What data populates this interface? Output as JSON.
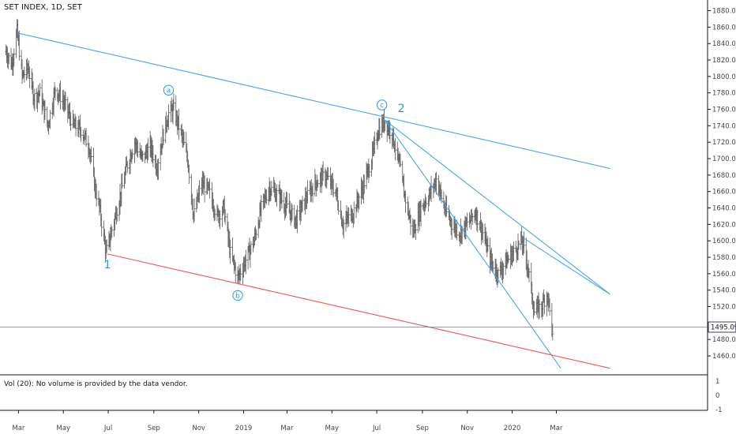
{
  "header": {
    "title": "SET INDEX, 1D, SET"
  },
  "volume_pane": {
    "text": "Vol (20): No volume is provided by the data vendor.",
    "ticks": [
      "1",
      "0",
      "-1"
    ]
  },
  "last_price": "1495.09",
  "colors": {
    "bars": "#555555",
    "trendline_blue": "#42a5f5",
    "trendline_red": "#ef5350",
    "wave_label": "#2196f3"
  },
  "chart_data": {
    "type": "ohlc",
    "title": "SET INDEX, 1D, SET",
    "x_ticks": [
      "Mar",
      "May",
      "Jul",
      "Sep",
      "Nov",
      "2019",
      "Mar",
      "May",
      "Jul",
      "Sep",
      "Nov",
      "2020",
      "Mar"
    ],
    "y_ticks": [
      "1880.00",
      "1860.00",
      "1840.00",
      "1820.00",
      "1800.00",
      "1780.00",
      "1760.00",
      "1740.00",
      "1720.00",
      "1700.00",
      "1680.00",
      "1660.00",
      "1640.00",
      "1620.00",
      "1600.00",
      "1580.00",
      "1560.00",
      "1540.00",
      "1520.00",
      "1480.00",
      "1460.00"
    ],
    "ylim": [
      1437,
      1893
    ],
    "series": [
      {
        "name": "",
        "points": [
          [
            "2018-02-12",
            1830
          ],
          [
            "2018-02-20",
            1815
          ],
          [
            "2018-02-27",
            1855
          ],
          [
            "2018-03-06",
            1800
          ],
          [
            "2018-03-14",
            1810
          ],
          [
            "2018-03-22",
            1775
          ],
          [
            "2018-03-30",
            1780
          ],
          [
            "2018-04-10",
            1740
          ],
          [
            "2018-04-20",
            1785
          ],
          [
            "2018-05-01",
            1770
          ],
          [
            "2018-05-15",
            1740
          ],
          [
            "2018-05-25",
            1735
          ],
          [
            "2018-06-05",
            1715
          ],
          [
            "2018-06-13",
            1665
          ],
          [
            "2018-06-20",
            1635
          ],
          [
            "2018-06-28",
            1585
          ],
          [
            "2018-07-05",
            1610
          ],
          [
            "2018-07-16",
            1650
          ],
          [
            "2018-07-26",
            1690
          ],
          [
            "2018-08-06",
            1720
          ],
          [
            "2018-08-16",
            1700
          ],
          [
            "2018-08-27",
            1715
          ],
          [
            "2018-09-05",
            1690
          ],
          [
            "2018-09-14",
            1730
          ],
          [
            "2018-09-21",
            1755
          ],
          [
            "2018-09-28",
            1760
          ],
          [
            "2018-10-08",
            1730
          ],
          [
            "2018-10-17",
            1700
          ],
          [
            "2018-10-25",
            1630
          ],
          [
            "2018-11-05",
            1670
          ],
          [
            "2018-11-15",
            1660
          ],
          [
            "2018-11-26",
            1630
          ],
          [
            "2018-12-05",
            1640
          ],
          [
            "2018-12-14",
            1585
          ],
          [
            "2018-12-24",
            1555
          ],
          [
            "2019-01-03",
            1575
          ],
          [
            "2019-01-15",
            1600
          ],
          [
            "2019-01-25",
            1640
          ],
          [
            "2019-02-05",
            1665
          ],
          [
            "2019-02-18",
            1655
          ],
          [
            "2019-03-01",
            1640
          ],
          [
            "2019-03-13",
            1625
          ],
          [
            "2019-03-26",
            1650
          ],
          [
            "2019-04-08",
            1670
          ],
          [
            "2019-04-22",
            1680
          ],
          [
            "2019-05-06",
            1660
          ],
          [
            "2019-05-16",
            1620
          ],
          [
            "2019-05-30",
            1635
          ],
          [
            "2019-06-12",
            1665
          ],
          [
            "2019-06-24",
            1700
          ],
          [
            "2019-07-03",
            1735
          ],
          [
            "2019-07-12",
            1745
          ],
          [
            "2019-07-22",
            1730
          ],
          [
            "2019-08-01",
            1690
          ],
          [
            "2019-08-09",
            1650
          ],
          [
            "2019-08-19",
            1610
          ],
          [
            "2019-08-30",
            1640
          ],
          [
            "2019-09-10",
            1655
          ],
          [
            "2019-09-20",
            1675
          ],
          [
            "2019-10-01",
            1640
          ],
          [
            "2019-10-11",
            1620
          ],
          [
            "2019-10-22",
            1610
          ],
          [
            "2019-11-01",
            1620
          ],
          [
            "2019-11-12",
            1635
          ],
          [
            "2019-11-22",
            1610
          ],
          [
            "2019-12-03",
            1575
          ],
          [
            "2019-12-13",
            1560
          ],
          [
            "2019-12-24",
            1575
          ],
          [
            "2020-01-06",
            1590
          ],
          [
            "2020-01-14",
            1600
          ],
          [
            "2020-01-22",
            1570
          ],
          [
            "2020-01-31",
            1515
          ],
          [
            "2020-02-10",
            1520
          ],
          [
            "2020-02-17",
            1535
          ],
          [
            "2020-02-21",
            1520
          ],
          [
            "2020-02-25",
            1480
          ]
        ]
      }
    ],
    "trendlines": [
      {
        "name": "",
        "color": "blue",
        "from": [
          "2018-02-27",
          1853
        ],
        "to": [
          "2020-05-13",
          1688
        ]
      },
      {
        "name": "",
        "color": "blue",
        "from": [
          "2019-07-12",
          1747
        ],
        "to": [
          "2020-05-13",
          1535
        ]
      },
      {
        "name": "",
        "color": "blue",
        "from": [
          "2019-07-12",
          1747
        ],
        "to": [
          "2020-03-07",
          1445
        ]
      },
      {
        "name": "",
        "color": "blue",
        "from": [
          "2020-01-17",
          1603
        ],
        "to": [
          "2020-05-13",
          1535
        ]
      },
      {
        "name": "",
        "color": "red",
        "from": [
          "2018-06-30",
          1584
        ],
        "to": [
          "2020-05-13",
          1445
        ]
      }
    ],
    "annotations": [
      {
        "text": "1",
        "at": [
          "2018-06-30",
          1584
        ],
        "style": "plain",
        "placement": "below"
      },
      {
        "text": "a",
        "at": [
          "2018-09-21",
          1767
        ],
        "style": "circled",
        "placement": "above"
      },
      {
        "text": "b",
        "at": [
          "2018-12-24",
          1547
        ],
        "style": "circled",
        "placement": "below"
      },
      {
        "text": "c",
        "at": [
          "2019-07-08",
          1749
        ],
        "style": "circled",
        "placement": "above"
      },
      {
        "text": "2",
        "at": [
          "2019-07-16",
          1749
        ],
        "style": "plain",
        "placement": "above"
      }
    ],
    "last_value": 1495.09,
    "grid": false
  }
}
